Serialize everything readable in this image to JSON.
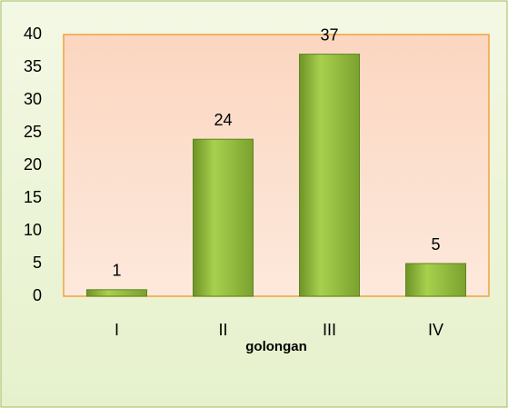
{
  "chart_data": {
    "type": "bar",
    "categories": [
      "I",
      "II",
      "III",
      "IV"
    ],
    "values": [
      1,
      24,
      37,
      5
    ],
    "color": "#8cb43a",
    "x_label": "golongan",
    "ylim": [
      0,
      40
    ],
    "yticks": [
      0,
      5,
      10,
      15,
      20,
      25,
      30,
      35,
      40
    ],
    "grid": false
  }
}
